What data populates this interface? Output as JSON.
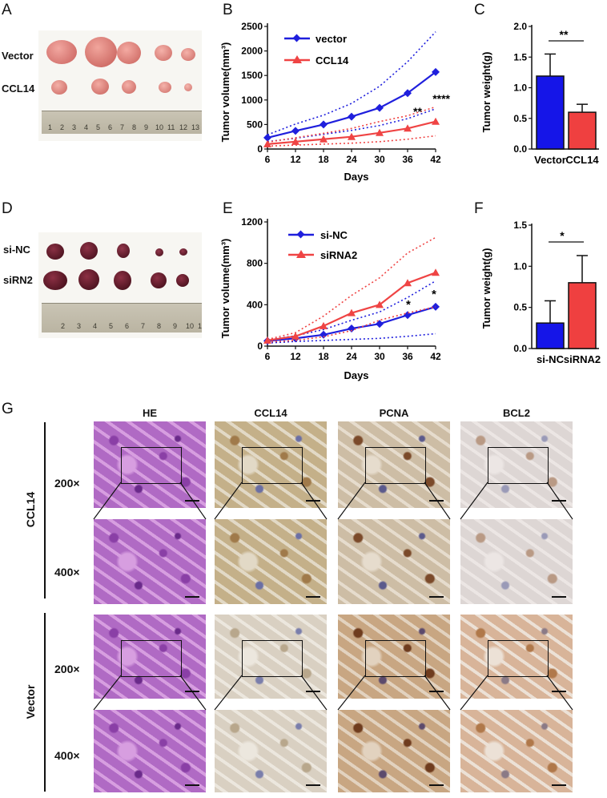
{
  "panels": {
    "A": "A",
    "B": "B",
    "C": "C",
    "D": "D",
    "E": "E",
    "F": "F",
    "G": "G"
  },
  "photoA": {
    "rows": [
      "Vector",
      "CCL14"
    ],
    "ruler": [
      "1",
      "2",
      "3",
      "4",
      "5",
      "6",
      "7",
      "8",
      "9",
      "10",
      "11",
      "12",
      "13"
    ]
  },
  "photoD": {
    "rows": [
      "si-NC",
      "siRN2"
    ],
    "ruler": [
      "2",
      "3",
      "4",
      "5",
      "6",
      "7",
      "8",
      "9",
      "10",
      "1"
    ]
  },
  "chartB": {
    "ylabel": "Tumor volume(mm³)",
    "xlabel": "Days",
    "x": [
      6,
      12,
      18,
      24,
      30,
      36,
      42
    ],
    "yticks": [
      "0",
      "500",
      "1000",
      "1500",
      "2000",
      "2500"
    ],
    "series": [
      {
        "name": "vector",
        "color": "#1f1fdd",
        "marker": "diamond",
        "values": [
          230,
          370,
          500,
          660,
          840,
          1140,
          1570
        ],
        "upper": [
          290,
          510,
          690,
          930,
          1280,
          1780,
          2390
        ],
        "lower": [
          150,
          220,
          300,
          380,
          480,
          620,
          820
        ]
      },
      {
        "name": "CCL14",
        "color": "#ef4444",
        "marker": "triangle",
        "values": [
          100,
          150,
          200,
          250,
          330,
          420,
          560
        ],
        "upper": [
          140,
          230,
          320,
          420,
          560,
          680,
          860
        ],
        "lower": [
          60,
          80,
          100,
          120,
          150,
          200,
          270
        ]
      }
    ],
    "annotations": [
      "**",
      "****"
    ]
  },
  "chartC": {
    "ylabel": "Tumor weight(g)",
    "yticks": [
      "0.0",
      "0.5",
      "1.0",
      "1.5",
      "2.0"
    ],
    "categories": [
      "Vector",
      "CCL14"
    ],
    "values": [
      1.19,
      0.6
    ],
    "err": [
      0.36,
      0.13
    ],
    "colors": [
      "#1515e8",
      "#ef4040"
    ],
    "sig": "**"
  },
  "chartE": {
    "ylabel": "Tumor volume(mm³)",
    "xlabel": "Days",
    "x": [
      6,
      12,
      18,
      24,
      30,
      36,
      42
    ],
    "yticks": [
      "0",
      "400",
      "800",
      "1200"
    ],
    "series": [
      {
        "name": "si-NC",
        "color": "#1f1fdd",
        "marker": "diamond",
        "values": [
          50,
          75,
          110,
          170,
          215,
          300,
          380
        ],
        "upper": [
          60,
          100,
          160,
          250,
          330,
          470,
          630
        ],
        "lower": [
          30,
          45,
          55,
          65,
          75,
          95,
          120
        ]
      },
      {
        "name": "siRNA2",
        "color": "#ef4444",
        "marker": "triangle",
        "values": [
          55,
          95,
          195,
          320,
          400,
          610,
          710
        ],
        "upper": [
          65,
          130,
          290,
          490,
          660,
          900,
          1050
        ],
        "lower": [
          40,
          55,
          90,
          150,
          250,
          320,
          380
        ]
      }
    ],
    "annotations": [
      "*",
      "*"
    ]
  },
  "chartF": {
    "ylabel": "Tumor weight(g)",
    "yticks": [
      "0.0",
      "0.5",
      "1.0",
      "1.5"
    ],
    "categories": [
      "si-NC",
      "siRNA2"
    ],
    "values": [
      0.31,
      0.8
    ],
    "err": [
      0.27,
      0.33
    ],
    "colors": [
      "#1515e8",
      "#ef4040"
    ],
    "sig": "*"
  },
  "panelG": {
    "columns": [
      "HE",
      "CCL14",
      "PCNA",
      "BCL2"
    ],
    "groups": [
      "CCL14",
      "Vector"
    ],
    "magnifications": [
      "200×",
      "400×",
      "200×",
      "400×"
    ]
  }
}
